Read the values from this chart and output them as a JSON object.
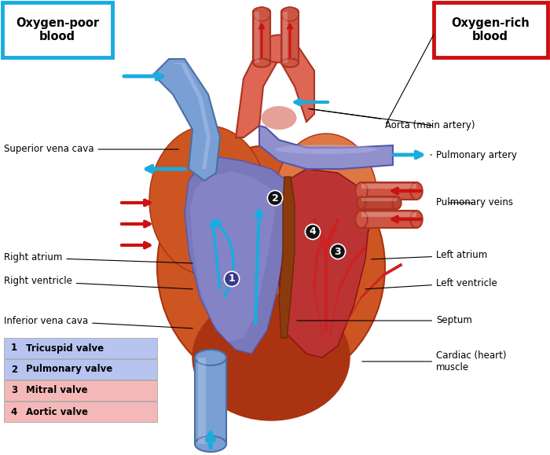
{
  "bg_color": "#ffffff",
  "fig_width": 7.0,
  "fig_height": 5.79,
  "dpi": 100,
  "labels": {
    "oxygen_poor": "Oxygen-poor\nblood",
    "oxygen_rich": "Oxygen-rich\nblood",
    "aorta": "Aorta (main artery)",
    "superior_vena_cava": "Superior vena cava",
    "pulmonary_artery": "Pulmonary artery",
    "pulmonary_veins": "Pulmonary veins",
    "right_atrium": "Right atrium",
    "right_ventricle": "Right ventricle",
    "inferior_vena_cava": "Inferior vena cava",
    "left_atrium": "Left atrium",
    "left_ventricle": "Left ventricle",
    "septum": "Septum",
    "cardiac_muscle": "Cardiac (heart)\nmuscle"
  },
  "legend": [
    {
      "num": "1",
      "text": "Tricuspid valve",
      "color": "#b8c4f0"
    },
    {
      "num": "2",
      "text": "Pulmonary valve",
      "color": "#b8c4f0"
    },
    {
      "num": "3",
      "text": "Mitral valve",
      "color": "#f5b8b8"
    },
    {
      "num": "4",
      "text": "Aortic valve",
      "color": "#f5b8b8"
    }
  ],
  "box_poor_color": "#1aacdf",
  "box_rich_color": "#cc1111",
  "arrow_blue": "#1aacdf",
  "arrow_red": "#cc1111",
  "heart_orange": "#cc5522",
  "heart_dark": "#aa3311",
  "heart_light": "#dd7744",
  "blue_vessel": "#7090cc",
  "blue_vessel_dark": "#4060a0",
  "purple_vessel": "#8878bb",
  "red_vessel": "#cc4433",
  "red_vessel_dark": "#aa2211",
  "chamber_blue": "#9090cc",
  "chamber_purple": "#7878aa",
  "chamber_red": "#cc3333",
  "chamber_dark_red": "#aa2222"
}
